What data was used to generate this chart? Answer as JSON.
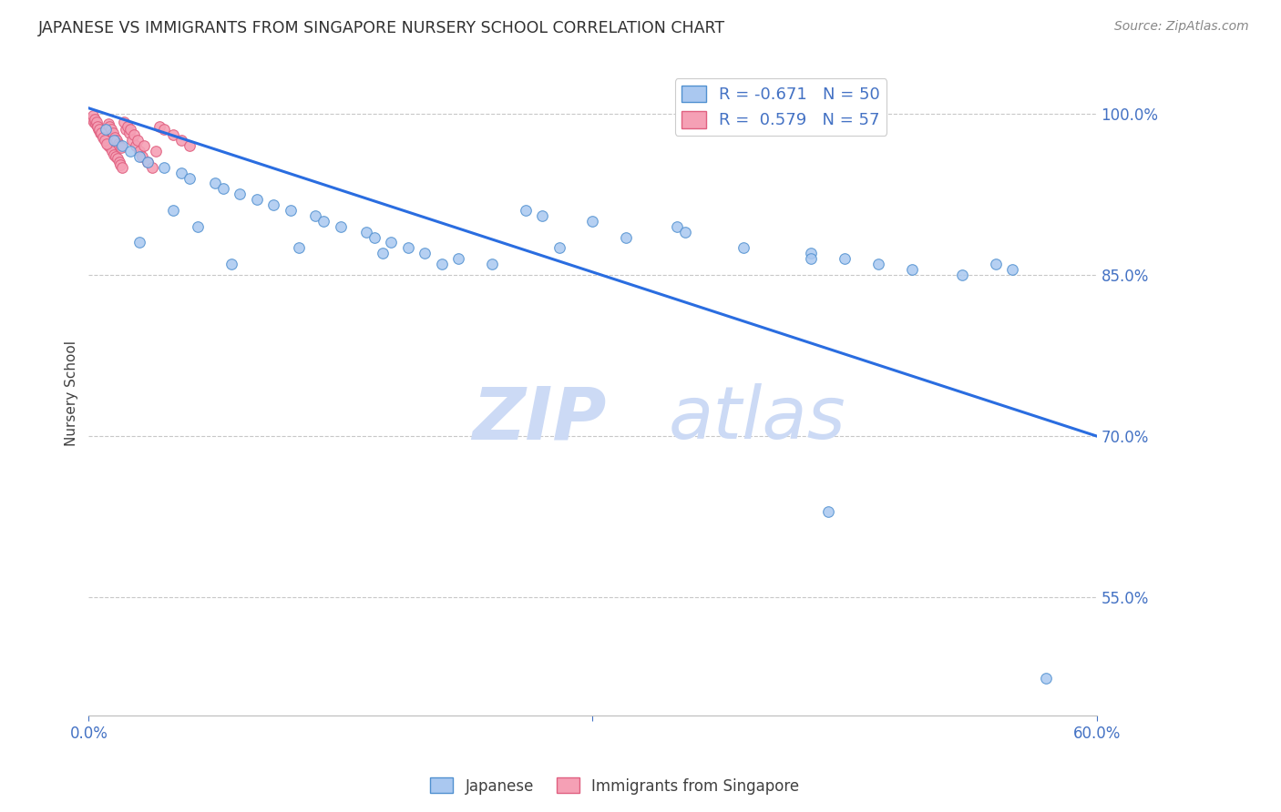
{
  "title": "JAPANESE VS IMMIGRANTS FROM SINGAPORE NURSERY SCHOOL CORRELATION CHART",
  "source": "Source: ZipAtlas.com",
  "ylabel": "Nursery School",
  "yticks": [
    55.0,
    70.0,
    85.0,
    100.0
  ],
  "ytick_labels": [
    "55.0%",
    "70.0%",
    "85.0%",
    "100.0%"
  ],
  "xlim": [
    0.0,
    60.0
  ],
  "ylim": [
    44.0,
    104.0
  ],
  "trendline_color": "#2a6de0",
  "trendline_x": [
    0.0,
    60.0
  ],
  "trendline_y": [
    100.5,
    70.0
  ],
  "blue_scatter": {
    "x": [
      1.0,
      1.5,
      2.0,
      2.5,
      3.0,
      3.5,
      4.5,
      5.5,
      6.0,
      7.5,
      8.0,
      9.0,
      10.0,
      11.0,
      12.0,
      13.5,
      14.0,
      15.0,
      16.5,
      17.0,
      18.0,
      19.0,
      20.0,
      22.0,
      24.0,
      26.0,
      27.0,
      30.0,
      35.0,
      35.5,
      39.0,
      43.0,
      45.0,
      47.0,
      49.0,
      52.0,
      54.0,
      55.0,
      43.0,
      44.0,
      32.0,
      8.5,
      12.5,
      17.5,
      21.0,
      6.5,
      3.0,
      5.0,
      57.0,
      28.0
    ],
    "y": [
      98.5,
      97.5,
      97.0,
      96.5,
      96.0,
      95.5,
      95.0,
      94.5,
      94.0,
      93.5,
      93.0,
      92.5,
      92.0,
      91.5,
      91.0,
      90.5,
      90.0,
      89.5,
      89.0,
      88.5,
      88.0,
      87.5,
      87.0,
      86.5,
      86.0,
      91.0,
      90.5,
      90.0,
      89.5,
      89.0,
      87.5,
      87.0,
      86.5,
      86.0,
      85.5,
      85.0,
      86.0,
      85.5,
      86.5,
      63.0,
      88.5,
      86.0,
      87.5,
      87.0,
      86.0,
      89.5,
      88.0,
      91.0,
      47.5,
      87.5
    ],
    "color": "#aac8f0",
    "edgecolor": "#5090d0",
    "size": 70
  },
  "pink_scatter": {
    "x": [
      0.2,
      0.3,
      0.4,
      0.5,
      0.6,
      0.7,
      0.8,
      0.9,
      1.0,
      1.1,
      1.2,
      1.3,
      1.4,
      1.5,
      1.6,
      1.7,
      1.8,
      1.9,
      2.0,
      2.2,
      2.4,
      2.6,
      2.8,
      3.0,
      3.2,
      3.5,
      3.8,
      4.2,
      4.5,
      5.0,
      5.5,
      6.0,
      0.25,
      0.35,
      0.45,
      0.55,
      0.65,
      0.75,
      0.85,
      0.95,
      1.05,
      1.15,
      1.25,
      1.35,
      1.45,
      1.55,
      1.65,
      1.75,
      1.85,
      1.95,
      2.1,
      2.3,
      2.5,
      2.7,
      2.9,
      3.3,
      4.0
    ],
    "y": [
      99.5,
      99.2,
      99.0,
      98.8,
      98.5,
      98.2,
      98.0,
      97.8,
      97.5,
      97.2,
      97.0,
      96.8,
      96.5,
      96.2,
      96.0,
      95.8,
      95.5,
      95.2,
      95.0,
      98.5,
      98.2,
      97.5,
      97.0,
      96.5,
      96.0,
      95.5,
      95.0,
      98.8,
      98.5,
      98.0,
      97.5,
      97.0,
      99.8,
      99.5,
      99.2,
      98.8,
      98.5,
      98.2,
      97.8,
      97.5,
      97.2,
      99.0,
      98.8,
      98.5,
      98.2,
      97.8,
      97.5,
      97.2,
      97.0,
      96.8,
      99.2,
      98.8,
      98.5,
      98.0,
      97.5,
      97.0,
      96.5
    ],
    "color": "#f5a0b5",
    "edgecolor": "#e06080",
    "size": 70
  },
  "background_color": "#ffffff",
  "grid_color": "#c8c8c8",
  "title_color": "#303030",
  "axis_color": "#4472c4",
  "watermark_zip": "ZIP",
  "watermark_atlas": "atlas",
  "watermark_color": "#ccdaf5"
}
